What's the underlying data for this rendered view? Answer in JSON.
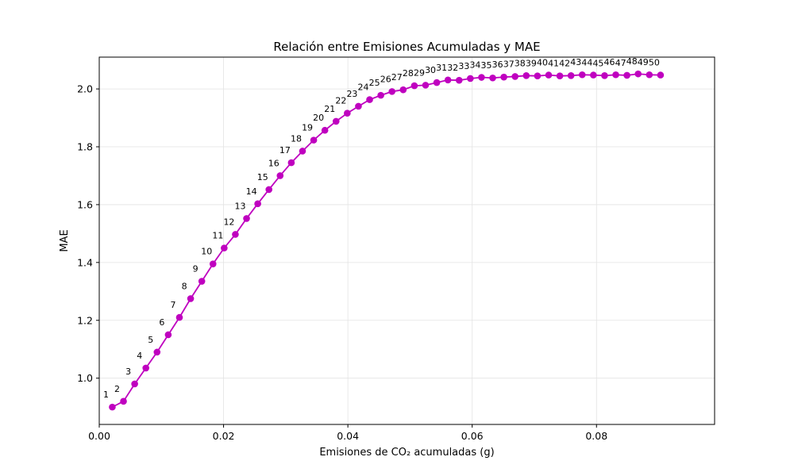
{
  "chart_data": {
    "type": "line",
    "title": "Relación entre Emisiones Acumuladas y MAE",
    "xlabel": "Emisiones de CO₂ acumuladas (g)",
    "ylabel": "MAE",
    "xlim": [
      0.0,
      0.099
    ],
    "ylim": [
      0.84,
      2.11
    ],
    "xticks": [
      0.0,
      0.02,
      0.04,
      0.06,
      0.08
    ],
    "xtick_labels": [
      "0.00",
      "0.02",
      "0.04",
      "0.06",
      "0.08"
    ],
    "yticks": [
      1.0,
      1.2,
      1.4,
      1.6,
      1.8,
      2.0
    ],
    "ytick_labels": [
      "1.0",
      "1.2",
      "1.4",
      "1.6",
      "1.8",
      "2.0"
    ],
    "grid": true,
    "color": "#bf00bf",
    "marker": "circle",
    "point_labels": [
      "1",
      "2",
      "3",
      "4",
      "5",
      "6",
      "7",
      "8",
      "9",
      "10",
      "11",
      "12",
      "13",
      "14",
      "15",
      "16",
      "17",
      "18",
      "19",
      "20",
      "21",
      "22",
      "23",
      "24",
      "25",
      "26",
      "27",
      "28",
      "29",
      "30",
      "31",
      "32",
      "33",
      "34",
      "35",
      "36",
      "37",
      "38",
      "39",
      "40",
      "41",
      "42",
      "43",
      "44",
      "45",
      "46",
      "47",
      "48",
      "49",
      "50"
    ],
    "x": [
      0.0021,
      0.0039,
      0.0057,
      0.0075,
      0.0093,
      0.0111,
      0.0129,
      0.0147,
      0.0165,
      0.0183,
      0.0201,
      0.0219,
      0.0237,
      0.0255,
      0.0273,
      0.0291,
      0.0309,
      0.0327,
      0.0345,
      0.0363,
      0.0381,
      0.0399,
      0.0417,
      0.0435,
      0.0453,
      0.0471,
      0.0489,
      0.0507,
      0.0525,
      0.0543,
      0.0561,
      0.0579,
      0.0597,
      0.0615,
      0.0633,
      0.0651,
      0.0669,
      0.0687,
      0.0705,
      0.0723,
      0.0741,
      0.0759,
      0.0777,
      0.0795,
      0.0813,
      0.0831,
      0.0849,
      0.0867,
      0.0885,
      0.0903
    ],
    "y": [
      0.9,
      0.92,
      0.98,
      1.035,
      1.09,
      1.15,
      1.21,
      1.275,
      1.335,
      1.395,
      1.45,
      1.497,
      1.552,
      1.603,
      1.652,
      1.7,
      1.745,
      1.785,
      1.823,
      1.857,
      1.888,
      1.916,
      1.94,
      1.963,
      1.978,
      1.991,
      1.997,
      2.011,
      2.013,
      2.022,
      2.031,
      2.03,
      2.036,
      2.04,
      2.038,
      2.041,
      2.043,
      2.046,
      2.045,
      2.048,
      2.045,
      2.046,
      2.049,
      2.048,
      2.046,
      2.049,
      2.047,
      2.052,
      2.049,
      2.048
    ]
  }
}
